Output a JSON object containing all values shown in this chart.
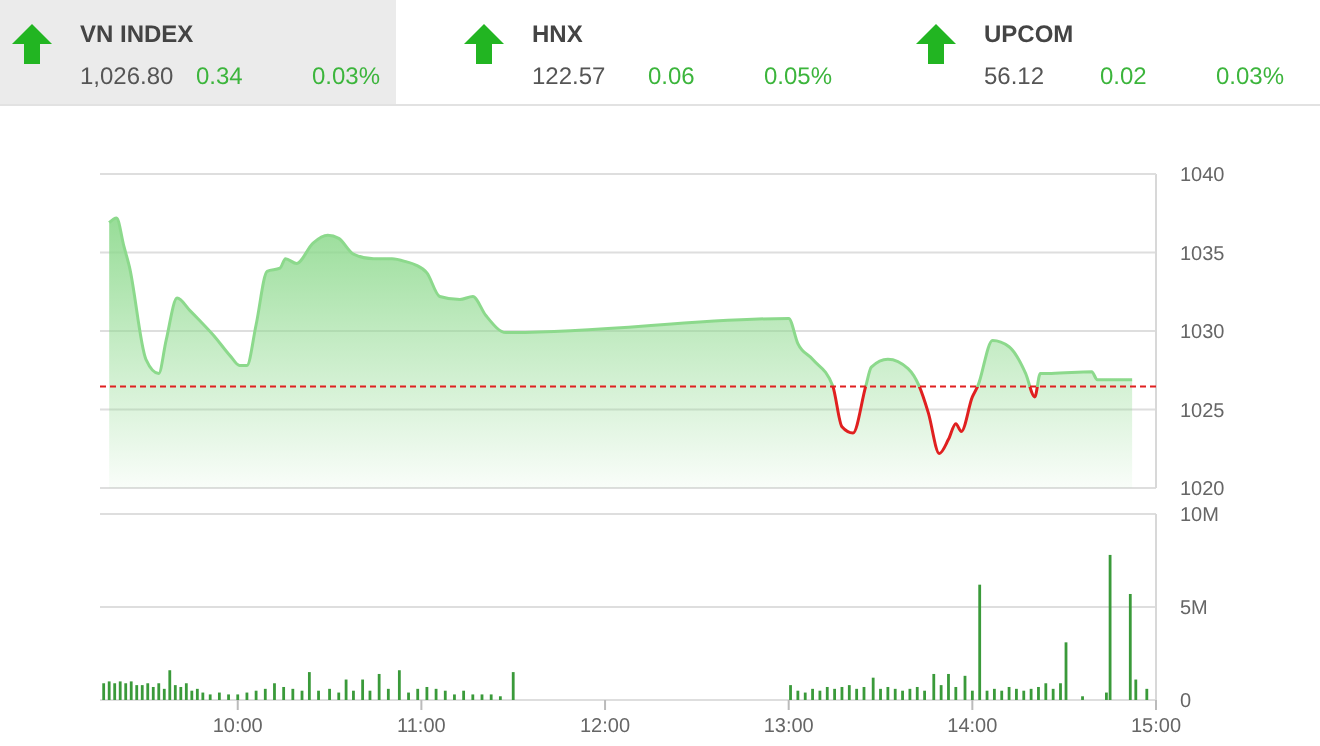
{
  "chart_data": [
    {
      "type": "other",
      "annotations": [
        "VN INDEX",
        "1,026.80",
        "0.34",
        "0.03%",
        "HNX",
        "122.57",
        "0.06",
        "0.05%",
        "UPCOM",
        "56.12",
        "0.02",
        "0.03%"
      ]
    },
    {
      "type": "area",
      "color": "#8cd98c",
      "tick_labels": "y",
      "grid": "y",
      "xlim": [
        9.25,
        15
      ],
      "ylim": [
        1020,
        1040
      ],
      "yticks": [
        1020,
        1025,
        1030,
        1035,
        1040
      ],
      "ref_lines": [
        {
          "axis": "y",
          "value": 1026.46,
          "color": "#e02020",
          "line_style": "dashed"
        }
      ],
      "x": [
        9.3,
        9.34,
        9.38,
        9.41,
        9.5,
        9.57,
        9.61,
        9.67,
        9.74,
        9.79,
        9.87,
        9.96,
        10.01,
        10.05,
        10.1,
        10.16,
        10.23,
        10.26,
        10.32,
        10.41,
        10.49,
        10.55,
        10.63,
        10.74,
        10.84,
        10.92,
        10.97,
        11.03,
        11.1,
        11.21,
        11.28,
        11.35,
        11.46,
        11.5,
        13.0,
        13.05,
        13.13,
        13.24,
        13.29,
        13.35,
        13.42,
        13.45,
        13.54,
        13.65,
        13.71,
        13.76,
        13.82,
        13.87,
        13.91,
        13.94,
        14.0,
        14.03,
        14.11,
        14.2,
        14.29,
        14.34,
        14.37,
        14.43,
        14.65,
        14.68,
        14.87
      ],
      "values": [
        1036.9,
        1037.2,
        1035.4,
        1034.1,
        1028.2,
        1027.3,
        1029.4,
        1032.1,
        1031.3,
        1030.7,
        1029.7,
        1028.4,
        1027.8,
        1027.8,
        1030.4,
        1033.8,
        1034.0,
        1034.6,
        1034.3,
        1035.6,
        1036.1,
        1035.9,
        1034.9,
        1034.6,
        1034.6,
        1034.4,
        1034.2,
        1033.7,
        1032.2,
        1032.0,
        1032.2,
        1031.0,
        1029.9,
        1029.9,
        1030.8,
        1029.2,
        1028.2,
        1026.5,
        1023.9,
        1023.5,
        1026.5,
        1027.7,
        1028.2,
        1027.6,
        1026.5,
        1024.8,
        1022.2,
        1023.1,
        1024.1,
        1023.6,
        1025.8,
        1026.5,
        1029.4,
        1029.0,
        1027.3,
        1025.8,
        1027.3,
        1027.3,
        1027.4,
        1026.9,
        1026.9
      ]
    },
    {
      "type": "bar",
      "color": "#3a9a3a",
      "grid": "y",
      "xlim": [
        9.25,
        15
      ],
      "xticks": [
        {
          "value": 10,
          "label": "10:00"
        },
        {
          "value": 11,
          "label": "11:00"
        },
        {
          "value": 12,
          "label": "12:00"
        },
        {
          "value": 13,
          "label": "13:00"
        },
        {
          "value": 14,
          "label": "14:00"
        },
        {
          "value": 15,
          "label": "15:00"
        }
      ],
      "ylim": [
        0,
        10
      ],
      "yticks": [
        0,
        {
          "value": 5,
          "label": "5M"
        },
        {
          "value": 10,
          "label": "10M"
        }
      ],
      "x": [
        9.27,
        9.3,
        9.33,
        9.36,
        9.39,
        9.42,
        9.45,
        9.48,
        9.51,
        9.54,
        9.57,
        9.6,
        9.63,
        9.66,
        9.69,
        9.72,
        9.75,
        9.78,
        9.81,
        9.85,
        9.9,
        9.95,
        10.0,
        10.05,
        10.1,
        10.15,
        10.2,
        10.25,
        10.3,
        10.35,
        10.39,
        10.44,
        10.5,
        10.55,
        10.59,
        10.63,
        10.68,
        10.72,
        10.77,
        10.82,
        10.88,
        10.93,
        10.98,
        11.03,
        11.08,
        11.13,
        11.18,
        11.23,
        11.28,
        11.33,
        11.38,
        11.43,
        11.5,
        13.01,
        13.05,
        13.09,
        13.13,
        13.17,
        13.21,
        13.25,
        13.29,
        13.33,
        13.37,
        13.41,
        13.46,
        13.5,
        13.54,
        13.58,
        13.62,
        13.66,
        13.7,
        13.74,
        13.79,
        13.83,
        13.87,
        13.91,
        13.96,
        14.0,
        14.04,
        14.08,
        14.12,
        14.16,
        14.2,
        14.24,
        14.28,
        14.32,
        14.36,
        14.4,
        14.44,
        14.48,
        14.51,
        14.6,
        14.73,
        14.75,
        14.86,
        14.89,
        14.95
      ],
      "values": [
        0.9,
        1.0,
        0.9,
        1.0,
        0.9,
        1.0,
        0.8,
        0.8,
        0.9,
        0.7,
        0.9,
        0.6,
        1.6,
        0.8,
        0.7,
        0.9,
        0.5,
        0.6,
        0.4,
        0.3,
        0.4,
        0.3,
        0.3,
        0.4,
        0.5,
        0.6,
        0.9,
        0.7,
        0.6,
        0.5,
        1.5,
        0.5,
        0.6,
        0.4,
        1.1,
        0.5,
        1.1,
        0.5,
        1.4,
        0.6,
        1.6,
        0.4,
        0.6,
        0.7,
        0.6,
        0.5,
        0.3,
        0.5,
        0.3,
        0.3,
        0.3,
        0.2,
        1.5,
        0.8,
        0.5,
        0.4,
        0.6,
        0.5,
        0.7,
        0.6,
        0.7,
        0.8,
        0.6,
        0.7,
        1.2,
        0.6,
        0.7,
        0.6,
        0.5,
        0.6,
        0.7,
        0.5,
        1.4,
        0.8,
        1.4,
        0.7,
        1.3,
        0.5,
        6.2,
        0.5,
        0.6,
        0.5,
        0.7,
        0.6,
        0.5,
        0.6,
        0.7,
        0.9,
        0.6,
        0.9,
        3.1,
        0.2,
        0.4,
        7.8,
        5.7,
        1.1,
        0.6
      ]
    }
  ]
}
